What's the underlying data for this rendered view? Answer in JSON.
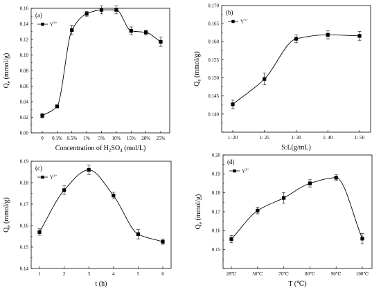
{
  "chart_data": [
    {
      "type": "scatter",
      "panel_label": "(a)",
      "xlabel_parts": [
        "Concentration of H",
        "2",
        "SO",
        "4",
        " (mol/L)"
      ],
      "ylabel_parts": [
        "Q",
        "e",
        " (mmol/g)"
      ],
      "categories": [
        "0",
        "0.1%",
        "0.5%",
        "1%",
        "5%",
        "10%",
        "15%",
        "20%",
        "25%"
      ],
      "series": [
        {
          "name": "Y3+",
          "values": [
            0.022,
            0.034,
            0.132,
            0.153,
            0.158,
            0.158,
            0.131,
            0.129,
            0.117
          ],
          "errors": [
            0.003,
            0.002,
            0.006,
            0.003,
            0.005,
            0.005,
            0.005,
            0.003,
            0.006
          ]
        }
      ],
      "ylim": [
        0.0,
        0.16
      ],
      "yticks": [
        0.0,
        0.02,
        0.04,
        0.06,
        0.08,
        0.1,
        0.12,
        0.14,
        0.16
      ],
      "ytick_labels": [
        "0.00",
        "0.02",
        "0.04",
        "0.06",
        "0.08",
        "0.10",
        "0.12",
        "0.14",
        "0.16"
      ],
      "fit_curve": true,
      "legend": "top-left",
      "grid": false
    },
    {
      "type": "scatter",
      "panel_label": "(b)",
      "xlabel_parts": [
        "S:L(g/mL)"
      ],
      "ylabel_parts": [
        "Q",
        "e",
        " (mmol/g)"
      ],
      "categories": [
        "1: 20",
        "1: 25",
        "1: 30",
        "1: 40",
        "1: 50"
      ],
      "series": [
        {
          "name": "Y3+",
          "values": [
            0.1427,
            0.1497,
            0.1608,
            0.1619,
            0.1616
          ],
          "errors": [
            0.0012,
            0.0016,
            0.0011,
            0.0011,
            0.0012
          ]
        }
      ],
      "ylim": [
        0.135,
        0.17
      ],
      "yticks": [
        0.135,
        0.14,
        0.145,
        0.15,
        0.155,
        0.16,
        0.165,
        0.17
      ],
      "ytick_labels": [
        "",
        "0.140",
        "0.145",
        "0.150",
        "0.155",
        "0.160",
        "0.165",
        "0.170"
      ],
      "fit_curve": true,
      "legend": "top-left",
      "grid": false
    },
    {
      "type": "scatter",
      "panel_label": "(c)",
      "xlabel_parts": [
        "t (h)"
      ],
      "ylabel_parts": [
        "Q",
        "e",
        " (mmol/g)"
      ],
      "categories": [
        "1",
        "2",
        "3",
        "4",
        "5",
        "6"
      ],
      "series": [
        {
          "name": "Y3+",
          "values": [
            0.157,
            0.1765,
            0.186,
            0.174,
            0.156,
            0.1525
          ],
          "errors": [
            0.0015,
            0.002,
            0.0022,
            0.0015,
            0.0022,
            0.0012
          ]
        }
      ],
      "ylim": [
        0.14,
        0.19
      ],
      "yticks": [
        0.14,
        0.15,
        0.16,
        0.17,
        0.18,
        0.19
      ],
      "ytick_labels": [
        "0.14",
        "0.15",
        "0.16",
        "0.17",
        "0.18",
        "0.19"
      ],
      "fit_curve": true,
      "legend": "top-left",
      "grid": false
    },
    {
      "type": "scatter",
      "panel_label": "(d)",
      "xlabel_parts": [
        "T (℃)"
      ],
      "ylabel_parts": [
        "Q",
        "e",
        " (mmol/g)"
      ],
      "categories": [
        "28℃",
        "50℃",
        "70℃",
        "80℃",
        "90℃",
        "100℃"
      ],
      "series": [
        {
          "name": "Y3+",
          "values": [
            0.1555,
            0.1706,
            0.1773,
            0.185,
            0.188,
            0.1558
          ],
          "errors": [
            0.0019,
            0.0017,
            0.0028,
            0.0019,
            0.0015,
            0.0027
          ]
        }
      ],
      "ylim": [
        0.14,
        0.2
      ],
      "yticks": [
        0.14,
        0.15,
        0.16,
        0.17,
        0.18,
        0.19,
        0.2
      ],
      "ytick_labels": [
        "",
        "0.15",
        "0.16",
        "0.17",
        "0.18",
        "0.19",
        "0.20"
      ],
      "fit_curve": true,
      "legend": "top-left",
      "grid": false
    }
  ]
}
